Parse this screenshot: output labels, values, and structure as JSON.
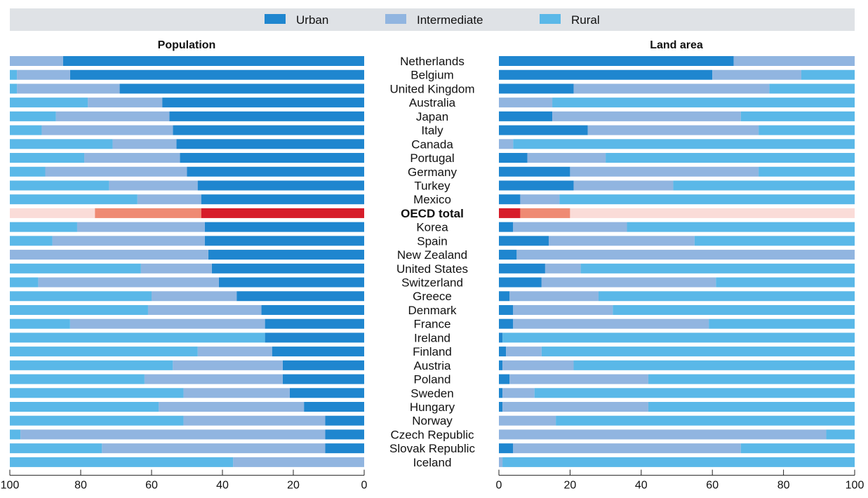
{
  "chart_data": {
    "type": "bar",
    "stacked": true,
    "orientation": "horizontal",
    "legend": {
      "position": "top",
      "entries": [
        "Urban",
        "Intermediate",
        "Rural"
      ]
    },
    "colors": {
      "Urban": "#1f86cf",
      "Intermediate": "#91b5e0",
      "Rural": "#5ab8e8",
      "OECD_Urban": "#d71d2a",
      "OECD_Intermediate": "#ef8a73",
      "OECD_Rural": "#fadcd8"
    },
    "highlight": "OECD total",
    "categories": [
      "Netherlands",
      "Belgium",
      "United Kingdom",
      "Australia",
      "Japan",
      "Italy",
      "Canada",
      "Portugal",
      "Germany",
      "Turkey",
      "Mexico",
      "OECD total",
      "Korea",
      "Spain",
      "New Zealand",
      "United States",
      "Switzerland",
      "Greece",
      "Denmark",
      "France",
      "Ireland",
      "Finland",
      "Austria",
      "Poland",
      "Sweden",
      "Hungary",
      "Norway",
      "Czech Republic",
      "Slovak Republic",
      "Iceland"
    ],
    "panels": [
      {
        "title": "Population",
        "xlim": [
          100,
          0
        ],
        "ticks": [
          100,
          80,
          60,
          40,
          20,
          0
        ],
        "series": [
          {
            "name": "Urban",
            "values": [
              85,
              83,
              69,
              57,
              55,
              54,
              53,
              52,
              50,
              47,
              46,
              46,
              45,
              45,
              44,
              43,
              41,
              36,
              29,
              28,
              28,
              26,
              23,
              23,
              21,
              17,
              11,
              11,
              11,
              0
            ]
          },
          {
            "name": "Intermediate",
            "values": [
              15,
              15,
              29,
              21,
              32,
              37,
              18,
              27,
              40,
              25,
              18,
              30,
              36,
              43,
              56,
              20,
              51,
              24,
              32,
              55,
              0,
              21,
              31,
              39,
              30,
              41,
              40,
              86,
              63,
              37
            ]
          },
          {
            "name": "Rural",
            "values": [
              0,
              2,
              2,
              22,
              13,
              9,
              29,
              21,
              10,
              28,
              36,
              24,
              19,
              12,
              0,
              37,
              8,
              40,
              39,
              17,
              72,
              53,
              46,
              38,
              49,
              42,
              49,
              3,
              26,
              63
            ]
          }
        ]
      },
      {
        "title": "Land area",
        "xlim": [
          0,
          100
        ],
        "ticks": [
          0,
          20,
          40,
          60,
          80,
          100
        ],
        "series": [
          {
            "name": "Urban",
            "values": [
              66,
              60,
              21,
              0,
              15,
              25,
              0,
              8,
              20,
              21,
              6,
              6,
              4,
              14,
              5,
              13,
              12,
              3,
              4,
              4,
              1,
              2,
              1,
              3,
              1,
              1,
              0,
              0,
              4,
              0
            ]
          },
          {
            "name": "Intermediate",
            "values": [
              34,
              25,
              55,
              15,
              53,
              48,
              4,
              22,
              53,
              28,
              11,
              14,
              32,
              41,
              95,
              10,
              49,
              25,
              28,
              55,
              0,
              10,
              20,
              39,
              9,
              41,
              16,
              92,
              64,
              1
            ]
          },
          {
            "name": "Rural",
            "values": [
              0,
              15,
              24,
              85,
              32,
              27,
              96,
              70,
              27,
              51,
              83,
              80,
              64,
              45,
              0,
              77,
              39,
              72,
              68,
              41,
              99,
              88,
              79,
              58,
              90,
              58,
              84,
              8,
              32,
              99
            ]
          }
        ]
      }
    ]
  }
}
